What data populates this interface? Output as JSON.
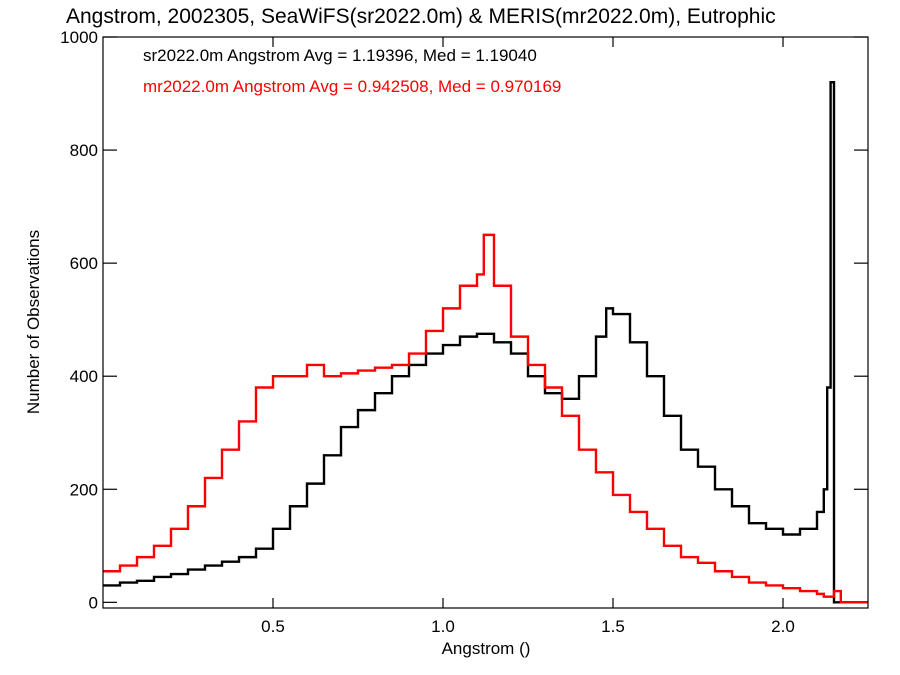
{
  "chart_data": {
    "type": "line",
    "step": true,
    "title": "Angstrom, 2002305, SeaWiFS(sr2022.0m) & MERIS(mr2022.0m), Eutrophic",
    "xlabel": "Angstrom ()",
    "ylabel": "Number of Observations",
    "xlim": [
      0.0,
      2.25
    ],
    "ylim": [
      -10,
      1000
    ],
    "xticks": [
      0.5,
      1.0,
      1.5,
      2.0
    ],
    "xtick_labels": [
      "0.5",
      "1.0",
      "1.5",
      "2.0"
    ],
    "yticks": [
      0,
      200,
      400,
      600,
      800,
      1000
    ],
    "ytick_labels": [
      "0",
      "200",
      "400",
      "600",
      "800",
      "1000"
    ],
    "grid": false,
    "annotations": [
      {
        "text": "sr2022.0m Angstrom Avg = 1.19396, Med = 1.19040",
        "color": "#000000"
      },
      {
        "text": "mr2022.0m Angstrom Avg = 0.942508, Med = 0.970169",
        "color": "#ff0000"
      }
    ],
    "series": [
      {
        "color": "#000000",
        "x": [
          0.0,
          0.05,
          0.1,
          0.15,
          0.2,
          0.25,
          0.3,
          0.35,
          0.4,
          0.45,
          0.5,
          0.55,
          0.6,
          0.65,
          0.7,
          0.75,
          0.8,
          0.85,
          0.9,
          0.95,
          1.0,
          1.05,
          1.1,
          1.15,
          1.2,
          1.25,
          1.3,
          1.35,
          1.4,
          1.45,
          1.48,
          1.5,
          1.55,
          1.6,
          1.65,
          1.7,
          1.75,
          1.8,
          1.85,
          1.9,
          1.95,
          2.0,
          2.05,
          2.1,
          2.12,
          2.13,
          2.14,
          2.15,
          2.17,
          2.2,
          2.25
        ],
        "y": [
          30,
          35,
          38,
          45,
          50,
          58,
          65,
          72,
          80,
          95,
          130,
          170,
          210,
          260,
          310,
          340,
          370,
          400,
          420,
          440,
          455,
          470,
          475,
          460,
          440,
          400,
          370,
          360,
          400,
          470,
          520,
          510,
          460,
          400,
          330,
          270,
          240,
          200,
          170,
          140,
          130,
          120,
          130,
          160,
          200,
          380,
          920,
          0,
          0,
          0,
          0
        ]
      },
      {
        "color": "#ff0000",
        "x": [
          0.0,
          0.05,
          0.1,
          0.15,
          0.2,
          0.25,
          0.3,
          0.35,
          0.4,
          0.45,
          0.5,
          0.55,
          0.6,
          0.65,
          0.7,
          0.75,
          0.8,
          0.85,
          0.9,
          0.95,
          1.0,
          1.05,
          1.1,
          1.12,
          1.15,
          1.2,
          1.25,
          1.3,
          1.35,
          1.4,
          1.45,
          1.5,
          1.55,
          1.6,
          1.65,
          1.7,
          1.75,
          1.8,
          1.85,
          1.9,
          1.95,
          2.0,
          2.05,
          2.1,
          2.12,
          2.15,
          2.17,
          2.2,
          2.25
        ],
        "y": [
          55,
          65,
          80,
          100,
          130,
          170,
          220,
          270,
          320,
          380,
          400,
          400,
          420,
          400,
          405,
          410,
          415,
          420,
          440,
          480,
          520,
          560,
          580,
          650,
          560,
          470,
          420,
          380,
          330,
          270,
          230,
          190,
          160,
          130,
          100,
          80,
          70,
          55,
          45,
          35,
          30,
          25,
          20,
          15,
          10,
          20,
          0,
          0,
          0
        ]
      }
    ]
  }
}
